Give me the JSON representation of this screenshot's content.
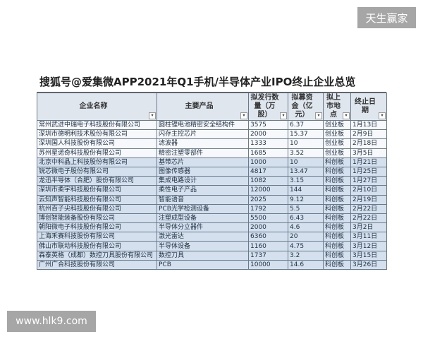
{
  "watermarks": {
    "top_right": "天生赢家",
    "bottom_left": "www.hlk9.com"
  },
  "title": "搜狐号@爱集微APP2021年Q1手机/半导体产业IPO终止企业总览",
  "headers": [
    "企业名称",
    "主要产品",
    "拟发行数量（万股）",
    "拟募资金（亿元）",
    "拟上市地点",
    "终止日期"
  ],
  "rows": [
    [
      "常州武进中瑞电子科技股份有限公司",
      "圆柱锂电池精密安全结构件",
      "3575",
      "6.37",
      "创业板",
      "1月13日"
    ],
    [
      "深圳市德明利技术股份有限公司",
      "闪存主控芯片",
      "2000",
      "15.37",
      "创业板",
      "2月9日"
    ],
    [
      "深圳国人科技股份有限公司",
      "滤波器",
      "1333",
      "10",
      "创业板",
      "2月18日"
    ],
    [
      "苏州星诺奇科技股份有限公司",
      "精密注塑零部件",
      "1685",
      "3.52",
      "创业板",
      "3月5日"
    ],
    [
      "北京中科晶上科技股份有限公司",
      "基带芯片",
      "1000",
      "10",
      "科创板",
      "1月21日"
    ],
    [
      "锐芯微电子股份有限公司",
      "图像传感器",
      "4817",
      "13.47",
      "科创板",
      "1月25日"
    ],
    [
      "龙迅半导体（合肥）股份有限公司",
      "集成电路设计",
      "1082",
      "3.15",
      "科创板",
      "1月27日"
    ],
    [
      "深圳市柔宇科技股份有限公司",
      "柔性电子产品",
      "12000",
      "144",
      "科创板",
      "2月10日"
    ],
    [
      "云知声智能科技股份有限公司",
      "智能语音",
      "2025",
      "9.12",
      "科创板",
      "2月19日"
    ],
    [
      "杭州百子尖科技股份有限公司",
      "PCB光学检测设备",
      "1792",
      "5.5",
      "科创板",
      "2月22日"
    ],
    [
      "博创智能装备股份有限公司",
      "注塑成型设备",
      "5500",
      "6.43",
      "科创板",
      "2月22日"
    ],
    [
      "朝阳微电子科技股份有限公司",
      "半导体分立器件",
      "2000",
      "4.6",
      "科创板",
      "3月2日"
    ],
    [
      "上海禾赛科技股份有限公司",
      "激光雷达",
      "6360",
      "20",
      "科创板",
      "3月11日"
    ],
    [
      "佛山市联动科技股份有限公司",
      "半导体设备",
      "1160",
      "4.75",
      "科创板",
      "3月12日"
    ],
    [
      "森泰英格（成都）数控刀具股份有限公司",
      "数控刀具",
      "1737",
      "3.2",
      "科创板",
      "3月15日"
    ],
    [
      "广州广合科技股份有限公司",
      "PCB",
      "10000",
      "14.6",
      "科创板",
      "3月26日"
    ]
  ]
}
